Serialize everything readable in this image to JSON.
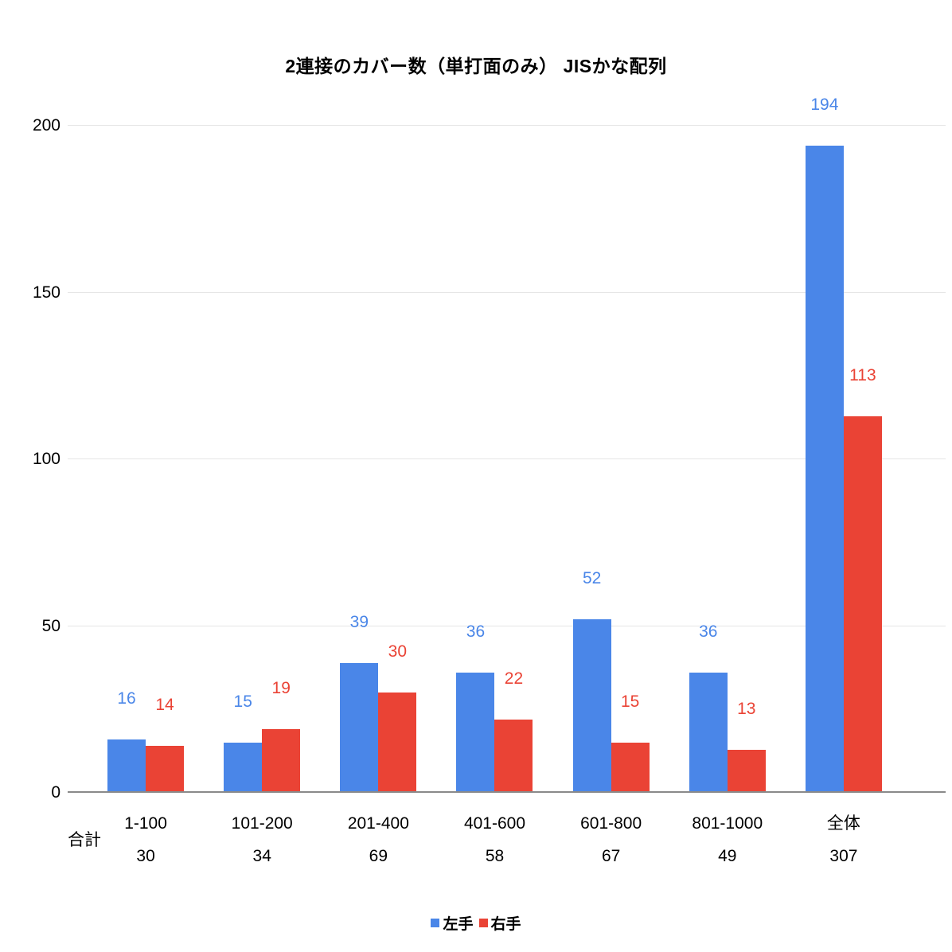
{
  "chart_data": {
    "type": "bar",
    "title": "2連接のカバー数（単打面のみ） JISかな配列",
    "xlabel": "",
    "ylabel": "",
    "categories": [
      "1-100",
      "101-200",
      "201-400",
      "401-600",
      "601-800",
      "801-1000",
      "全体"
    ],
    "series": [
      {
        "name": "左手",
        "color": "#4a86e8",
        "values": [
          16,
          15,
          39,
          36,
          52,
          36,
          194
        ]
      },
      {
        "name": "右手",
        "color": "#ea4335",
        "values": [
          14,
          19,
          30,
          22,
          15,
          13,
          113
        ]
      }
    ],
    "totals_label": "合計",
    "totals": [
      30,
      34,
      69,
      58,
      67,
      49,
      307
    ],
    "ylim": [
      0,
      200
    ],
    "yticks": [
      0,
      50,
      100,
      150,
      200
    ],
    "grid": true,
    "legend_position": "bottom",
    "colors": {
      "axis_line": "#8a8a8a",
      "gridline": "#e6e6e6",
      "text": "#000000"
    }
  }
}
